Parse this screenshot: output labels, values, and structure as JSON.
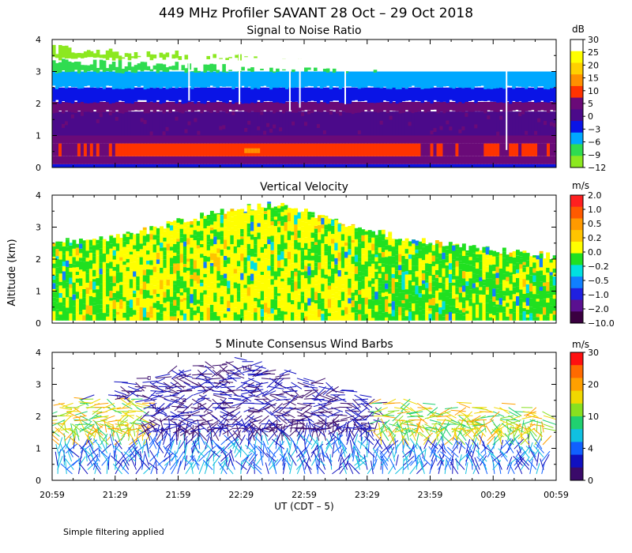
{
  "figure": {
    "title": "449 MHz Profiler SAVANT 28 Oct – 29 Oct 2018",
    "ylabel": "Altitude (km)",
    "xlabel": "UT  (CDT – 5)",
    "xticks": [
      "20:59",
      "21:29",
      "21:59",
      "22:29",
      "22:59",
      "23:29",
      "23:59",
      "00:29",
      "00:59"
    ],
    "footnote": "Simple filtering applied"
  },
  "chart_data": [
    {
      "type": "heatmap",
      "title": "Signal to Noise Ratio",
      "xlabel": "UT  (CDT – 5)",
      "ylabel": "Altitude (km)",
      "xlim": [
        "20:59",
        "00:59"
      ],
      "ylim": [
        0,
        4
      ],
      "yticks": [
        0,
        1,
        2,
        3,
        4
      ],
      "colorbar": {
        "unit": "dB",
        "labels": [
          "30",
          "25",
          "20",
          "15",
          "10",
          "5",
          "0",
          "−3",
          "−6",
          "−9",
          "−12"
        ],
        "colors": [
          "#ffffff",
          "#ffff00",
          "#ffd000",
          "#ff9000",
          "#ff3300",
          "#6a0a78",
          "#4b0a8a",
          "#0a14e6",
          "#00a8ff",
          "#2fdc50",
          "#8ce820"
        ]
      },
      "layers": [
        {
          "from_km": 0.0,
          "to_km": 0.1,
          "value_db": "−3"
        },
        {
          "from_km": 0.1,
          "to_km": 0.35,
          "value_db": "5"
        },
        {
          "from_km": 0.35,
          "to_km": 0.75,
          "value_db": "10"
        },
        {
          "from_km": 0.75,
          "to_km": 1.0,
          "value_db": "5"
        },
        {
          "from_km": 1.0,
          "to_km": 1.75,
          "value_db": "0"
        },
        {
          "from_km": 1.75,
          "to_km": 2.05,
          "value_db": "5"
        },
        {
          "from_km": 2.05,
          "to_km": 2.5,
          "value_db": "−3"
        },
        {
          "from_km": 2.5,
          "to_km": 3.0,
          "value_db": "−6"
        },
        {
          "from_km": 3.0,
          "to_km": 3.4,
          "value_db": "−9"
        },
        {
          "from_km": 3.4,
          "to_km": 3.7,
          "value_db": "−12"
        }
      ]
    },
    {
      "type": "heatmap",
      "title": "Vertical Velocity",
      "xlabel": "UT  (CDT – 5)",
      "ylabel": "Altitude (km)",
      "xlim": [
        "20:59",
        "00:59"
      ],
      "ylim": [
        0,
        4
      ],
      "yticks": [
        0,
        1,
        2,
        3,
        4
      ],
      "colorbar": {
        "unit": "m/s",
        "labels": [
          "2.0",
          "1.0",
          "0.5",
          "0.2",
          "0.0",
          "−0.2",
          "−0.5",
          "−1.0",
          "−2.0",
          "−10.0"
        ],
        "colors": [
          "#ff2020",
          "#ff5a00",
          "#ff9a00",
          "#ffc400",
          "#ffff00",
          "#20e020",
          "#00e0e0",
          "#1080ff",
          "#2020e0",
          "#5a1090",
          "#3a0040"
        ]
      },
      "data_top_km": [
        2.5,
        2.6,
        2.7,
        2.9,
        3.2,
        3.4,
        3.6,
        3.7,
        3.5,
        3.2,
        2.9,
        2.7,
        2.5,
        2.4,
        2.3,
        2.2,
        2.1
      ]
    },
    {
      "type": "scatter",
      "title": "5 Minute Consensus Wind Barbs",
      "xlabel": "UT  (CDT – 5)",
      "ylabel": "Altitude (km)",
      "xlim": [
        "20:59",
        "00:59"
      ],
      "ylim": [
        0,
        4
      ],
      "yticks": [
        0,
        1,
        2,
        3,
        4
      ],
      "colorbar": {
        "unit": "m/s",
        "labels": [
          "30",
          "20",
          "10",
          "4",
          "0"
        ],
        "colors": [
          "#ff1010",
          "#ff6a00",
          "#ffa000",
          "#f0d800",
          "#88e020",
          "#20d070",
          "#10c0e0",
          "#1060ff",
          "#1010c0",
          "#3a0a6a"
        ]
      }
    }
  ]
}
